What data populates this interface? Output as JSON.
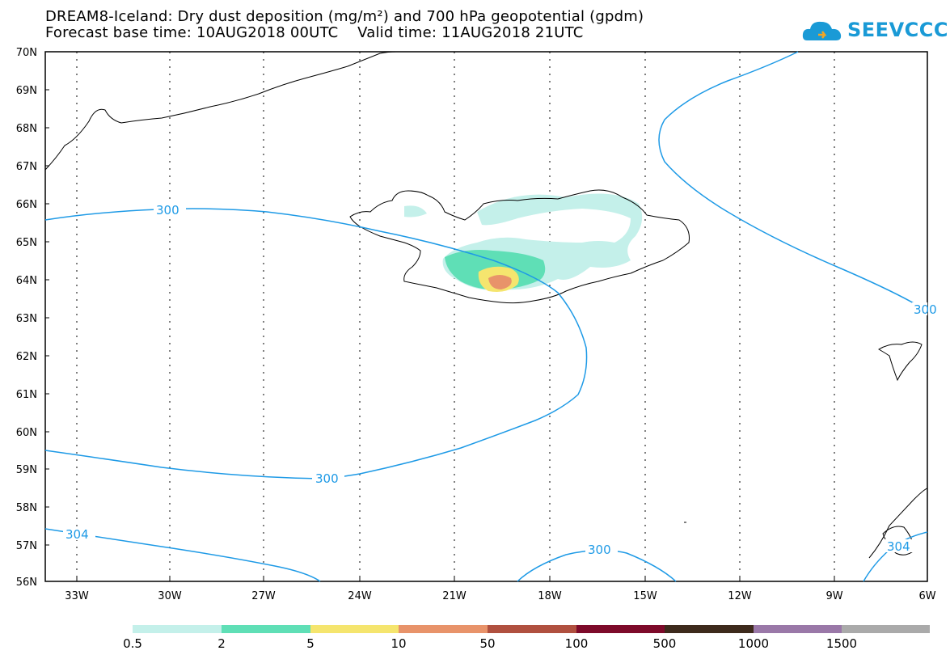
{
  "title": {
    "line1": "DREAM8-Iceland: Dry dust deposition (mg/m²) and 700 hPa geopotential (gpdm)",
    "line2": "Forecast base time: 10AUG2018 00UTC    Valid time: 11AUG2018 21UTC"
  },
  "logo": {
    "text": "SEEVCCC",
    "icon": "cloud-icon",
    "color": "#1a9ad6"
  },
  "map": {
    "lat_labels": [
      "70N",
      "69N",
      "68N",
      "67N",
      "66N",
      "65N",
      "64N",
      "63N",
      "62N",
      "61N",
      "60N",
      "59N",
      "58N",
      "57N",
      "56N"
    ],
    "lon_labels": [
      "33W",
      "30W",
      "27W",
      "24W",
      "21W",
      "18W",
      "15W",
      "12W",
      "9W",
      "6W"
    ],
    "contour_color": "#1e9ae6",
    "contour_labels": [
      "300",
      "300",
      "300",
      "300",
      "304",
      "304"
    ]
  },
  "legend": {
    "colors": [
      "#c4f0ea",
      "#5fdfb6",
      "#f5e56e",
      "#e8936a",
      "#b0503f",
      "#7d0a2a",
      "#3d2a1c",
      "#9a78a8",
      "#aaaaaa"
    ],
    "labels": [
      "0.5",
      "2",
      "5",
      "10",
      "50",
      "100",
      "500",
      "1000",
      "1500"
    ]
  }
}
